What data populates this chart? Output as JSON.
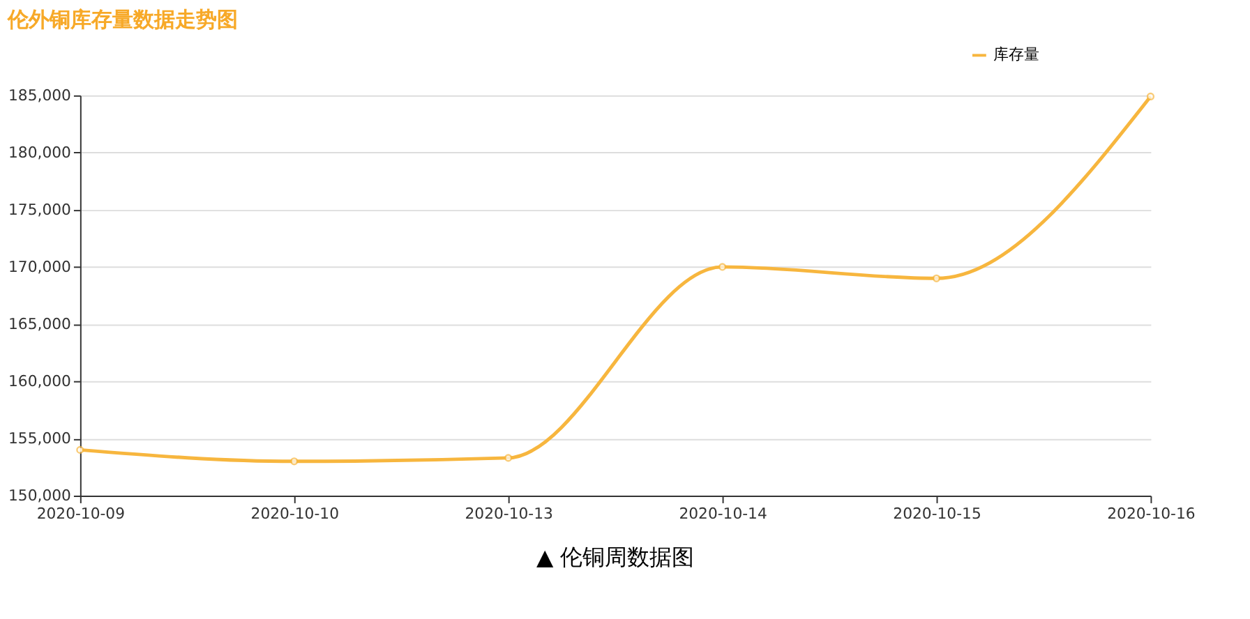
{
  "chart_data": {
    "type": "line",
    "title": "伦外铜库存量数据走势图",
    "categories": [
      "2020-10-09",
      "2020-10-10",
      "2020-10-13",
      "2020-10-14",
      "2020-10-15",
      "2020-10-16"
    ],
    "series": [
      {
        "name": "库存量",
        "color": "#f7b63e",
        "values": [
          154000,
          153000,
          153300,
          170000,
          169000,
          184900
        ]
      }
    ],
    "ylim": [
      150000,
      185000
    ],
    "yticks": [
      {
        "value": 150000,
        "label": "150,000"
      },
      {
        "value": 155000,
        "label": "155,000"
      },
      {
        "value": 160000,
        "label": "160,000"
      },
      {
        "value": 165000,
        "label": "165,000"
      },
      {
        "value": 170000,
        "label": "170,000"
      },
      {
        "value": 175000,
        "label": "175,000"
      },
      {
        "value": 180000,
        "label": "180,000"
      },
      {
        "value": 185000,
        "label": "185,000"
      }
    ],
    "grid": "y",
    "legend": "top right",
    "marker": "circle",
    "line_style": "solid",
    "annotations": [
      "▲ 伦铜周数据图"
    ]
  }
}
